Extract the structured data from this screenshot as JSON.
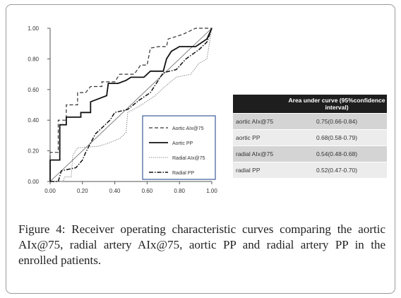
{
  "chart_data": {
    "type": "line",
    "title": "",
    "xlabel": "",
    "ylabel": "",
    "xlim": [
      0,
      1
    ],
    "ylim": [
      0,
      1
    ],
    "x_ticks": [
      "0.00",
      "0.20",
      "0.40",
      "0.60",
      "0.80",
      "1.00"
    ],
    "y_ticks": [
      "0.00",
      "0.20",
      "0.40",
      "0.60",
      "0.80",
      "1.00"
    ],
    "legend_position": "lower-right",
    "series": [
      {
        "name": "Aortic AIx@75",
        "style": "dashed",
        "color": "#333333",
        "points": [
          [
            0,
            0
          ],
          [
            0,
            0.19
          ],
          [
            0.05,
            0.19
          ],
          [
            0.05,
            0.4
          ],
          [
            0.1,
            0.4
          ],
          [
            0.1,
            0.5
          ],
          [
            0.17,
            0.5
          ],
          [
            0.17,
            0.58
          ],
          [
            0.22,
            0.58
          ],
          [
            0.25,
            0.62
          ],
          [
            0.32,
            0.62
          ],
          [
            0.32,
            0.65
          ],
          [
            0.4,
            0.65
          ],
          [
            0.43,
            0.7
          ],
          [
            0.52,
            0.7
          ],
          [
            0.56,
            0.76
          ],
          [
            0.6,
            0.76
          ],
          [
            0.62,
            0.87
          ],
          [
            0.67,
            0.88
          ],
          [
            0.72,
            0.88
          ],
          [
            0.73,
            0.93
          ],
          [
            0.82,
            0.96
          ],
          [
            0.9,
            1.0
          ],
          [
            1.0,
            1.0
          ]
        ]
      },
      {
        "name": "Aortic PP",
        "style": "solid",
        "color": "#111111",
        "points": [
          [
            0,
            0
          ],
          [
            0,
            0.14
          ],
          [
            0.06,
            0.14
          ],
          [
            0.06,
            0.37
          ],
          [
            0.1,
            0.37
          ],
          [
            0.1,
            0.42
          ],
          [
            0.19,
            0.42
          ],
          [
            0.19,
            0.45
          ],
          [
            0.25,
            0.45
          ],
          [
            0.25,
            0.52
          ],
          [
            0.35,
            0.56
          ],
          [
            0.36,
            0.64
          ],
          [
            0.42,
            0.64
          ],
          [
            0.47,
            0.66
          ],
          [
            0.5,
            0.68
          ],
          [
            0.58,
            0.68
          ],
          [
            0.62,
            0.72
          ],
          [
            0.7,
            0.72
          ],
          [
            0.72,
            0.8
          ],
          [
            0.75,
            0.85
          ],
          [
            0.8,
            0.88
          ],
          [
            0.9,
            0.88
          ],
          [
            0.97,
            0.93
          ],
          [
            1.0,
            1.0
          ]
        ]
      },
      {
        "name": "Radial AIx@75",
        "style": "dotted",
        "color": "#777777",
        "points": [
          [
            0,
            0
          ],
          [
            0.08,
            0
          ],
          [
            0.09,
            0.03
          ],
          [
            0.13,
            0.03
          ],
          [
            0.14,
            0.17
          ],
          [
            0.17,
            0.22
          ],
          [
            0.3,
            0.23
          ],
          [
            0.36,
            0.25
          ],
          [
            0.43,
            0.28
          ],
          [
            0.47,
            0.32
          ],
          [
            0.48,
            0.45
          ],
          [
            0.55,
            0.49
          ],
          [
            0.65,
            0.56
          ],
          [
            0.7,
            0.61
          ],
          [
            0.78,
            0.68
          ],
          [
            0.87,
            0.7
          ],
          [
            0.92,
            0.77
          ],
          [
            0.97,
            0.8
          ],
          [
            1.0,
            1.0
          ]
        ]
      },
      {
        "name": "Radial PP",
        "style": "dashdot",
        "color": "#111111",
        "points": [
          [
            0,
            0
          ],
          [
            0.05,
            0
          ],
          [
            0.07,
            0.07
          ],
          [
            0.16,
            0.09
          ],
          [
            0.2,
            0.14
          ],
          [
            0.22,
            0.19
          ],
          [
            0.28,
            0.31
          ],
          [
            0.33,
            0.36
          ],
          [
            0.37,
            0.4
          ],
          [
            0.4,
            0.45
          ],
          [
            0.48,
            0.47
          ],
          [
            0.55,
            0.53
          ],
          [
            0.62,
            0.58
          ],
          [
            0.7,
            0.71
          ],
          [
            0.78,
            0.73
          ],
          [
            0.84,
            0.8
          ],
          [
            0.92,
            0.86
          ],
          [
            0.97,
            0.91
          ],
          [
            1.0,
            1.0
          ]
        ]
      }
    ]
  },
  "auc_table": {
    "header": "Area under curve (95%confidence interval)",
    "rows": [
      {
        "label": "aortic AIx@75",
        "value": "0.75(0.66-0.84)"
      },
      {
        "label": "aortic PP",
        "value": "0.68(0.58-0.79)"
      },
      {
        "label": "radial AIx@75",
        "value": "0.54(0.48-0.68)"
      },
      {
        "label": "radial PP",
        "value": "0.52(0.47-0.70)"
      }
    ]
  },
  "caption": {
    "label": "Figure 4:",
    "text": "Receiver operating characteristic curves comparing the aortic AIx@75, radial artery AIx@75, aortic PP and radial artery PP in the enrolled patients."
  }
}
